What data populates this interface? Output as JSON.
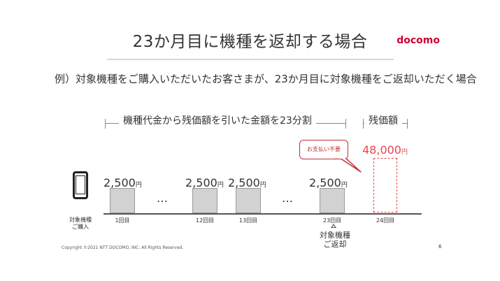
{
  "slide": {
    "title": "23か月目に機種を返却する場合",
    "logo": "docomo",
    "subtitle": "例）対象機種をご購入いただいたお客さまが、23か月目に対象機種をご返却いただく場合",
    "installment_bracket_label": "機種代金から残価額を引いた金額を23分割",
    "residual_bracket_label": "残価額",
    "device_label_line1": "対象機種",
    "device_label_line2": "ご購入",
    "ellipsis": "…",
    "payments": [
      {
        "amount": "2,500",
        "unit": "円",
        "month": "1回目"
      },
      {
        "amount": "2,500",
        "unit": "円",
        "month": "12回目"
      },
      {
        "amount": "2,500",
        "unit": "円",
        "month": "13回目"
      },
      {
        "amount": "2,500",
        "unit": "円",
        "month": "23回目"
      }
    ],
    "residual": {
      "amount": "48,000",
      "unit": "円",
      "month": "24回目"
    },
    "bubble_text": "お支払い不要",
    "return_label_line1": "対象機種",
    "return_label_line2": "ご返却",
    "footer": "Copyright ©2021 NTT DOCOMO, INC. All Rights Reserved.",
    "page_number": "6",
    "colors": {
      "accent": "#cc0033",
      "residual": "#e8474f",
      "box_fill": "#d2d2d2"
    }
  }
}
